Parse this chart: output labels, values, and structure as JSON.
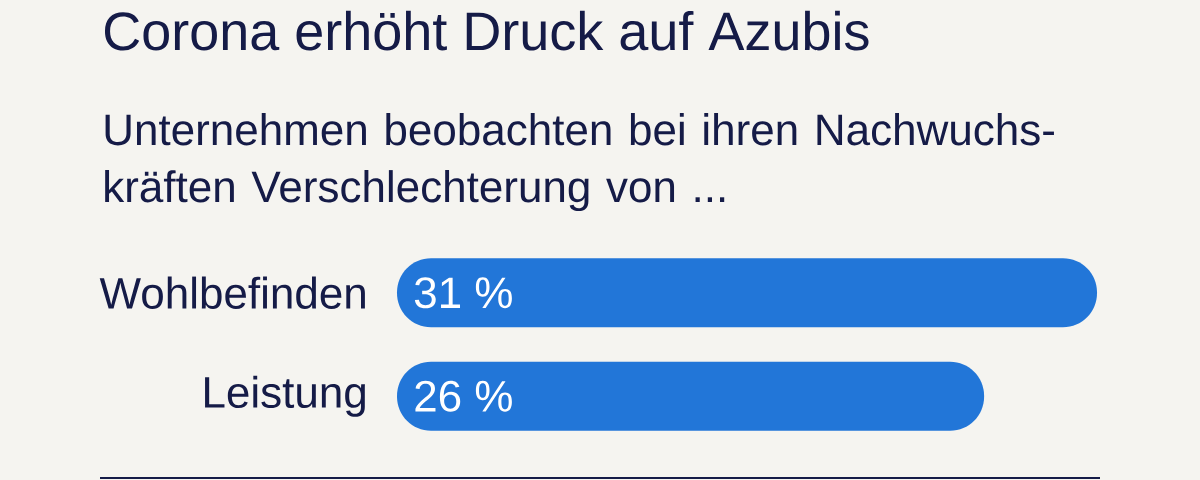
{
  "chart_data": {
    "type": "bar",
    "orientation": "horizontal",
    "title": "Corona erhöht Druck auf Azubis",
    "subtitle": "Unternehmen beobachten bei ihren Nachwuchs-kräften Verschlechterung von ...",
    "categories": [
      "Wohlbefinden",
      "Leistung"
    ],
    "values": [
      31,
      26
    ],
    "value_labels": [
      "31 %",
      "26 %"
    ],
    "color": "#2276d8",
    "xlim": [
      0,
      31
    ],
    "tick_labels": "y"
  }
}
